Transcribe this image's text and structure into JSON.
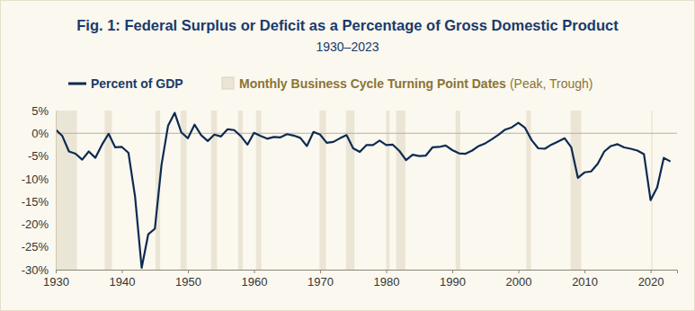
{
  "chart_data": {
    "type": "line",
    "title": "Fig. 1: Federal Surplus or Deficit as a Percentage of Gross Domestic Product",
    "subtitle": "1930–2023",
    "x": [
      1930,
      1931,
      1932,
      1933,
      1934,
      1935,
      1936,
      1937,
      1938,
      1939,
      1940,
      1941,
      1942,
      1943,
      1944,
      1945,
      1946,
      1947,
      1948,
      1949,
      1950,
      1951,
      1952,
      1953,
      1954,
      1955,
      1956,
      1957,
      1958,
      1959,
      1960,
      1961,
      1962,
      1963,
      1964,
      1965,
      1966,
      1967,
      1968,
      1969,
      1970,
      1971,
      1972,
      1973,
      1974,
      1975,
      1976,
      1977,
      1978,
      1979,
      1980,
      1981,
      1982,
      1983,
      1984,
      1985,
      1986,
      1987,
      1988,
      1989,
      1990,
      1991,
      1992,
      1993,
      1994,
      1995,
      1996,
      1997,
      1998,
      1999,
      2000,
      2001,
      2002,
      2003,
      2004,
      2005,
      2006,
      2007,
      2008,
      2009,
      2010,
      2011,
      2012,
      2013,
      2014,
      2015,
      2016,
      2017,
      2018,
      2019,
      2020,
      2021,
      2022,
      2023
    ],
    "series": [
      {
        "name": "Percent of GDP",
        "color": "#0d2a52",
        "values": [
          0.8,
          -0.6,
          -4.0,
          -4.5,
          -5.8,
          -4.0,
          -5.4,
          -2.5,
          -0.1,
          -3.1,
          -3.0,
          -4.3,
          -13.9,
          -29.6,
          -22.2,
          -21.0,
          -7.0,
          1.7,
          4.5,
          0.2,
          -1.1,
          1.9,
          -0.4,
          -1.7,
          -0.3,
          -0.7,
          0.9,
          0.7,
          -0.6,
          -2.5,
          0.1,
          -0.6,
          -1.2,
          -0.8,
          -0.9,
          -0.2,
          -0.5,
          -1.0,
          -2.8,
          0.3,
          -0.3,
          -2.1,
          -1.9,
          -1.1,
          -0.4,
          -3.3,
          -4.1,
          -2.6,
          -2.6,
          -1.6,
          -2.6,
          -2.5,
          -3.9,
          -5.9,
          -4.7,
          -5.0,
          -4.9,
          -3.1,
          -3.0,
          -2.7,
          -3.7,
          -4.4,
          -4.5,
          -3.8,
          -2.8,
          -2.2,
          -1.3,
          -0.3,
          0.8,
          1.3,
          2.3,
          1.2,
          -1.5,
          -3.3,
          -3.4,
          -2.5,
          -1.8,
          -1.1,
          -3.1,
          -9.8,
          -8.6,
          -8.4,
          -6.7,
          -4.0,
          -2.8,
          -2.4,
          -3.1,
          -3.4,
          -3.8,
          -4.6,
          -14.7,
          -11.9,
          -5.4,
          -6.2
        ]
      }
    ],
    "shading": {
      "name": "Monthly Business Cycle Turning Point Dates",
      "note": "(Peak, Trough)",
      "color": "#ebe5d5",
      "ranges": [
        [
          1929.6,
          1933.2
        ],
        [
          1937.4,
          1938.5
        ],
        [
          1945.1,
          1945.8
        ],
        [
          1948.9,
          1949.8
        ],
        [
          1953.5,
          1954.4
        ],
        [
          1957.6,
          1958.3
        ],
        [
          1960.3,
          1961.1
        ],
        [
          1969.9,
          1970.9
        ],
        [
          1973.9,
          1975.2
        ],
        [
          1980.0,
          1980.5
        ],
        [
          1981.5,
          1982.9
        ],
        [
          1990.5,
          1991.2
        ],
        [
          2001.2,
          2001.9
        ],
        [
          2007.9,
          2009.5
        ],
        [
          2020.1,
          2020.3
        ]
      ]
    },
    "xlim": [
      1930,
      2024
    ],
    "xticks": [
      1930,
      1940,
      1950,
      1960,
      1970,
      1980,
      1990,
      2000,
      2010,
      2020
    ],
    "ylim": [
      -30,
      5
    ],
    "yticks": [
      {
        "value": 5,
        "label": "5%"
      },
      {
        "value": 0,
        "label": "0%"
      },
      {
        "value": -5,
        "label": "-5%"
      },
      {
        "value": -10,
        "label": "-10%"
      },
      {
        "value": -15,
        "label": "-15%"
      },
      {
        "value": -20,
        "label": "-20%"
      },
      {
        "value": -25,
        "label": "-25%"
      },
      {
        "value": -30,
        "label": "-30%"
      }
    ],
    "grid": false
  }
}
